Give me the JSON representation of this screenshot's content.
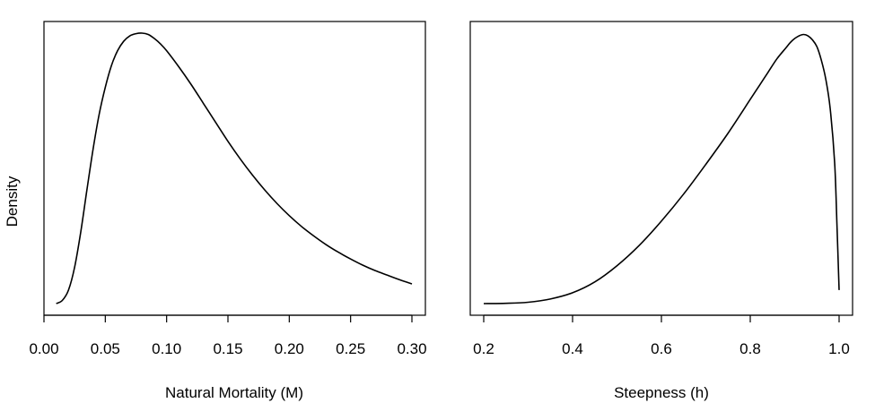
{
  "chart_data": [
    {
      "type": "line",
      "title": "",
      "xlabel": "Natural Mortality (M)",
      "ylabel": "Density",
      "xlim": [
        0.0,
        0.3
      ],
      "xticks": [
        "0.00",
        "0.05",
        "0.10",
        "0.15",
        "0.20",
        "0.25",
        "0.30"
      ],
      "grid": false,
      "series": [
        {
          "x": [
            0.01,
            0.015,
            0.02,
            0.025,
            0.03,
            0.035,
            0.04,
            0.045,
            0.05,
            0.055,
            0.06,
            0.065,
            0.07,
            0.075,
            0.08,
            0.085,
            0.09,
            0.095,
            0.1,
            0.11,
            0.12,
            0.13,
            0.14,
            0.15,
            0.16,
            0.17,
            0.18,
            0.19,
            0.2,
            0.21,
            0.22,
            0.23,
            0.24,
            0.25,
            0.26,
            0.27,
            0.28,
            0.29,
            0.3
          ],
          "y": [
            0.0,
            0.012,
            0.05,
            0.135,
            0.265,
            0.42,
            0.57,
            0.7,
            0.8,
            0.88,
            0.935,
            0.97,
            0.99,
            0.998,
            1.0,
            0.995,
            0.98,
            0.96,
            0.935,
            0.875,
            0.81,
            0.74,
            0.67,
            0.6,
            0.535,
            0.475,
            0.42,
            0.37,
            0.325,
            0.285,
            0.25,
            0.218,
            0.19,
            0.165,
            0.142,
            0.122,
            0.105,
            0.088,
            0.073
          ]
        }
      ]
    },
    {
      "type": "line",
      "title": "",
      "xlabel": "Steepness (h)",
      "ylabel": "",
      "xlim": [
        0.2,
        1.0
      ],
      "xticks": [
        "0.2",
        "0.4",
        "0.6",
        "0.8",
        "1.0"
      ],
      "grid": false,
      "series": [
        {
          "x": [
            0.2,
            0.25,
            0.3,
            0.35,
            0.4,
            0.45,
            0.5,
            0.55,
            0.6,
            0.65,
            0.7,
            0.75,
            0.8,
            0.82,
            0.84,
            0.86,
            0.88,
            0.89,
            0.9,
            0.91,
            0.92,
            0.93,
            0.94,
            0.95,
            0.96,
            0.97,
            0.98,
            0.99,
            0.995,
            1.0
          ],
          "y": [
            0.0,
            0.001,
            0.005,
            0.017,
            0.04,
            0.08,
            0.14,
            0.215,
            0.305,
            0.405,
            0.515,
            0.63,
            0.755,
            0.805,
            0.855,
            0.905,
            0.945,
            0.965,
            0.98,
            0.99,
            0.995,
            0.99,
            0.975,
            0.95,
            0.9,
            0.83,
            0.72,
            0.52,
            0.3,
            0.05
          ]
        }
      ]
    }
  ]
}
